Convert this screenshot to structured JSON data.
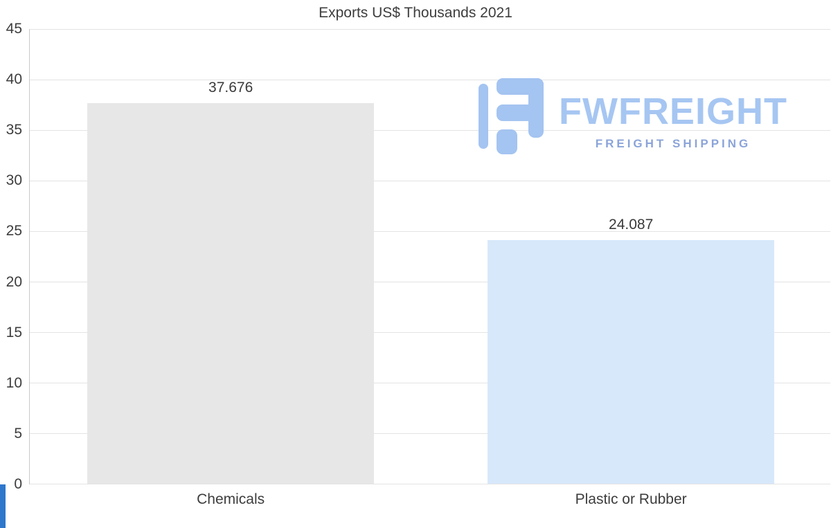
{
  "chart_data": {
    "type": "bar",
    "title": "Exports US$ Thousands 2021",
    "categories": [
      "Chemicals",
      "Plastic or Rubber"
    ],
    "values": [
      37.676,
      24.087
    ],
    "value_labels": [
      "37.676",
      "24.087"
    ],
    "series": [
      {
        "name": "Exports US$ Thousands 2021",
        "values": [
          37.676,
          24.087
        ]
      }
    ],
    "bar_colors": [
      "#e7e7e7",
      "#d7e8fa"
    ],
    "xlabel": "",
    "ylabel": "",
    "ylim": [
      0,
      45
    ],
    "yticks": [
      45,
      40,
      35,
      30,
      25,
      20,
      15,
      10,
      5,
      0
    ],
    "grid": true,
    "legend": "none"
  },
  "logo": {
    "name": "FWFREIGHT",
    "tagline": "FREIGHT SHIPPING",
    "name_color": "#a6c6f2",
    "tagline_color": "#8ba4d9",
    "icon_color": "#a4c4f1"
  },
  "decor": {
    "accent_strip_color": "#2e77cd"
  }
}
